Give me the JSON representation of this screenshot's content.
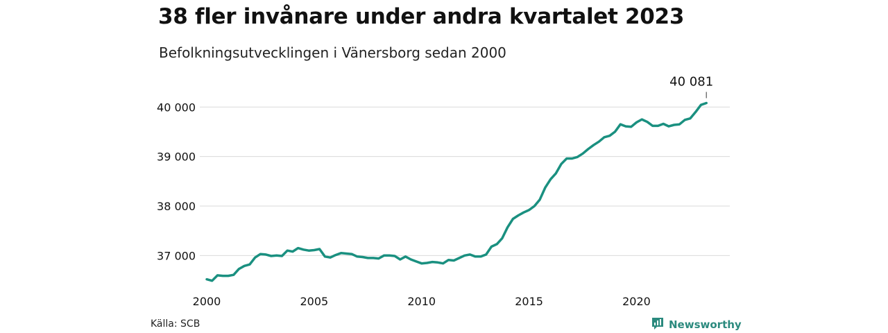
{
  "title": "38 fler invånare under andra kvartalet 2023",
  "subtitle": "Befolkningsutvecklingen i Vänersborg sedan 2000",
  "source": "Källa: SCB",
  "brand": {
    "name": "Newsworthy",
    "icon": "newsworthy-logo-icon",
    "color": "#2b8a7e"
  },
  "chart_data": {
    "type": "line",
    "line_color": "#1a9080",
    "grid": true,
    "ylim": [
      36500,
      40200
    ],
    "xlim": [
      2000,
      2023.6
    ],
    "yticks": [
      37000,
      38000,
      39000,
      40000
    ],
    "ytick_labels": [
      "37 000",
      "38 000",
      "39 000",
      "40 000"
    ],
    "xticks": [
      2000,
      2005,
      2010,
      2015,
      2020
    ],
    "xtick_labels": [
      "2000",
      "2005",
      "2010",
      "2015",
      "2020"
    ],
    "annotation": {
      "x": 2023.25,
      "y": 40081,
      "label": "40 081"
    },
    "series": [
      {
        "x": [
          2000,
          2000.25,
          2000.5,
          2000.75,
          2001,
          2001.25,
          2001.5,
          2001.75,
          2002,
          2002.25,
          2002.5,
          2002.75,
          2003,
          2003.25,
          2003.5,
          2003.75,
          2004,
          2004.25,
          2004.5,
          2004.75,
          2005,
          2005.25,
          2005.5,
          2005.75,
          2006,
          2006.25,
          2006.5,
          2006.75,
          2007,
          2007.25,
          2007.5,
          2007.75,
          2008,
          2008.25,
          2008.5,
          2008.75,
          2009,
          2009.25,
          2009.5,
          2009.75,
          2010,
          2010.25,
          2010.5,
          2010.75,
          2011,
          2011.25,
          2011.5,
          2011.75,
          2012,
          2012.25,
          2012.5,
          2012.75,
          2013,
          2013.25,
          2013.5,
          2013.75,
          2014,
          2014.25,
          2014.5,
          2014.75,
          2015,
          2015.25,
          2015.5,
          2015.75,
          2016,
          2016.25,
          2016.5,
          2016.75,
          2017,
          2017.25,
          2017.5,
          2017.75,
          2018,
          2018.25,
          2018.5,
          2018.75,
          2019,
          2019.25,
          2019.5,
          2019.75,
          2020,
          2020.25,
          2020.5,
          2020.75,
          2021,
          2021.25,
          2021.5,
          2021.75,
          2022,
          2022.25,
          2022.5,
          2022.75,
          2023,
          2023.25
        ],
        "values": [
          36520,
          36490,
          36600,
          36590,
          36590,
          36610,
          36730,
          36790,
          36820,
          36960,
          37030,
          37020,
          36990,
          37000,
          36990,
          37100,
          37080,
          37150,
          37120,
          37100,
          37110,
          37130,
          36980,
          36960,
          37010,
          37050,
          37040,
          37030,
          36980,
          36970,
          36950,
          36950,
          36940,
          37000,
          37000,
          36990,
          36920,
          36980,
          36920,
          36880,
          36840,
          36850,
          36870,
          36860,
          36840,
          36910,
          36900,
          36950,
          37000,
          37020,
          36980,
          36980,
          37020,
          37180,
          37230,
          37350,
          37570,
          37740,
          37810,
          37870,
          37920,
          38000,
          38130,
          38370,
          38540,
          38660,
          38850,
          38960,
          38960,
          38990,
          39060,
          39150,
          39230,
          39300,
          39390,
          39420,
          39500,
          39650,
          39610,
          39600,
          39690,
          39750,
          39700,
          39620,
          39620,
          39660,
          39610,
          39640,
          39650,
          39740,
          39770,
          39900,
          40043,
          40081
        ]
      }
    ]
  }
}
